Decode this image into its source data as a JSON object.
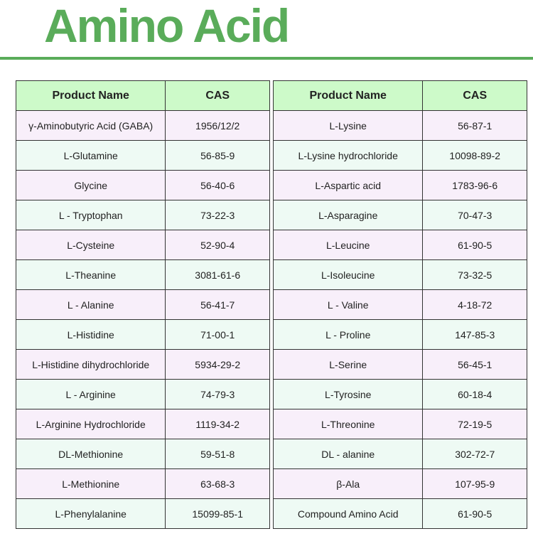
{
  "title": "Amino Acid",
  "columns": {
    "name": "Product Name",
    "cas": "CAS"
  },
  "left_table": [
    {
      "name": "γ-Aminobutyric Acid (GABA)",
      "cas": "1956/12/2"
    },
    {
      "name": "L-Glutamine",
      "cas": "56-85-9"
    },
    {
      "name": "Glycine",
      "cas": "56-40-6"
    },
    {
      "name": "L - Tryptophan",
      "cas": "73-22-3"
    },
    {
      "name": "L-Cysteine",
      "cas": "52-90-4"
    },
    {
      "name": "L-Theanine",
      "cas": "3081-61-6"
    },
    {
      "name": "L - Alanine",
      "cas": "56-41-7"
    },
    {
      "name": "L-Histidine",
      "cas": "71-00-1"
    },
    {
      "name": "L-Histidine dihydrochloride",
      "cas": "5934-29-2"
    },
    {
      "name": "L - Arginine",
      "cas": "74-79-3"
    },
    {
      "name": "L-Arginine Hydrochloride",
      "cas": "1119-34-2"
    },
    {
      "name": "DL-Methionine",
      "cas": "59-51-8"
    },
    {
      "name": "L-Methionine",
      "cas": "63-68-3"
    },
    {
      "name": "L-Phenylalanine",
      "cas": "15099-85-1"
    }
  ],
  "right_table": [
    {
      "name": "L-Lysine",
      "cas": "56-87-1"
    },
    {
      "name": "L-Lysine hydrochloride",
      "cas": "10098-89-2"
    },
    {
      "name": "L-Aspartic acid",
      "cas": "1783-96-6"
    },
    {
      "name": "L-Asparagine",
      "cas": "70-47-3"
    },
    {
      "name": "L-Leucine",
      "cas": "61-90-5"
    },
    {
      "name": "L-Isoleucine",
      "cas": "73-32-5"
    },
    {
      "name": "L - Valine",
      "cas": "4-18-72"
    },
    {
      "name": "L - Proline",
      "cas": "147-85-3"
    },
    {
      "name": "L-Serine",
      "cas": "56-45-1"
    },
    {
      "name": "L-Tyrosine",
      "cas": "60-18-4"
    },
    {
      "name": "L-Threonine",
      "cas": "72-19-5"
    },
    {
      "name": "DL - alanine",
      "cas": "302-72-7"
    },
    {
      "name": "β-Ala",
      "cas": "107-95-9"
    },
    {
      "name": "Compound Amino Acid",
      "cas": "61-90-5"
    }
  ],
  "colors": {
    "accent": "#5aac5a",
    "header_bg": "#cdfac9",
    "row_pink": "#f8effa",
    "row_mint": "#eefaf4"
  }
}
